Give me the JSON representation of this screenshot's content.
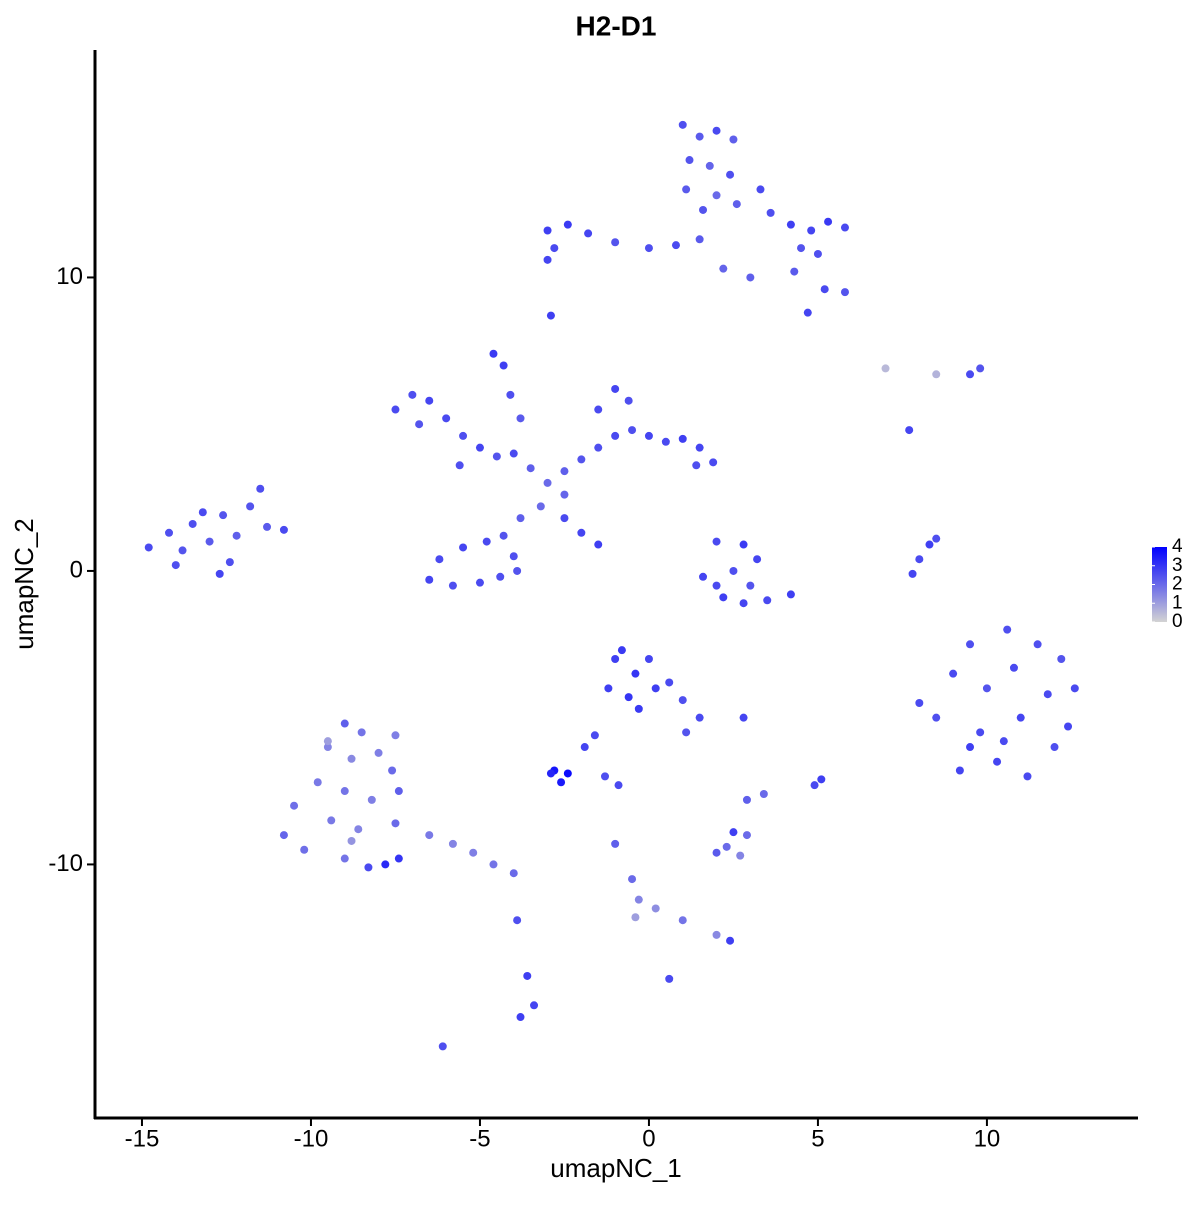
{
  "chart_data": {
    "type": "scatter",
    "title": "H2-D1",
    "x_label": "umapNC_1",
    "y_label": "umapNC_2",
    "xlim": [
      -16.39,
      14.47
    ],
    "ylim": [
      -18.64,
      17.75
    ],
    "xticks": [
      -15,
      -10,
      -5,
      0,
      5,
      10
    ],
    "yticks": [
      -10,
      0,
      10
    ],
    "colorbar": {
      "lim": [
        0,
        4
      ],
      "ticks": [
        0,
        1,
        2,
        3,
        4
      ],
      "low": "#d3d3d3",
      "high": "#0000ff"
    },
    "x": [
      1.0,
      1.5,
      2.0,
      2.5,
      1.2,
      1.8,
      2.4,
      1.1,
      2.0,
      1.6,
      2.6,
      3.3,
      3.6,
      4.2,
      4.8,
      5.3,
      5.8,
      4.5,
      5.0,
      4.3,
      5.2,
      5.8,
      4.7,
      3.0,
      2.2,
      -3.0,
      -2.4,
      -1.8,
      -2.8,
      -1.0,
      0.0,
      0.8,
      1.5,
      -3.0,
      -2.9,
      -7.5,
      -7.0,
      -6.5,
      -6.8,
      -6.0,
      -5.5,
      -5.0,
      -4.5,
      -4.0,
      -3.5,
      -3.0,
      -2.5,
      -2.0,
      -1.5,
      -1.0,
      -0.5,
      0.0,
      0.5,
      1.0,
      1.5,
      1.9,
      1.4,
      -1.5,
      -1.0,
      -0.6,
      -4.6,
      -4.3,
      -4.1,
      -3.8,
      -2.5,
      -3.2,
      -3.8,
      -4.3,
      -4.0,
      -4.8,
      -5.5,
      -6.2,
      -6.5,
      -5.8,
      -5.0,
      -4.4,
      -3.9,
      -2.5,
      -2.0,
      -1.5,
      -5.6,
      -14.8,
      -14.2,
      -13.8,
      -13.5,
      -13.0,
      -12.6,
      -12.4,
      -12.2,
      -11.8,
      -11.5,
      -11.3,
      -10.8,
      -13.2,
      -12.7,
      -14.0,
      7.0,
      8.5,
      9.5,
      9.8,
      7.7,
      2.0,
      2.8,
      3.2,
      2.5,
      3.0,
      2.0,
      1.6,
      2.2,
      2.8,
      3.5,
      4.2,
      7.8,
      8.0,
      8.3,
      8.5,
      8.0,
      8.5,
      9.0,
      9.2,
      9.5,
      9.8,
      10.0,
      10.3,
      10.6,
      10.8,
      11.0,
      11.2,
      11.5,
      11.8,
      12.0,
      12.2,
      12.6,
      12.4,
      9.5,
      10.5,
      -1.0,
      -0.8,
      -0.4,
      0.0,
      -1.2,
      -0.6,
      0.2,
      -0.3,
      0.6,
      1.0,
      1.5,
      1.1,
      -1.6,
      -1.9,
      2.8,
      -2.8,
      -2.4,
      -2.6,
      -2.9,
      -1.3,
      -0.9,
      5.1,
      4.9,
      3.4,
      2.9,
      -9.0,
      -8.5,
      -7.5,
      -9.5,
      -8.8,
      -8.0,
      -7.6,
      -9.8,
      -9.0,
      -8.2,
      -7.4,
      -10.5,
      -9.4,
      -8.6,
      -7.5,
      -10.8,
      -10.2,
      -9.0,
      -7.8,
      -7.4,
      -8.3,
      -6.5,
      -5.8,
      -5.2,
      -4.6,
      -4.0,
      -9.5,
      -8.8,
      -1.0,
      -0.5,
      -0.3,
      -0.4,
      0.2,
      1.0,
      2.0,
      2.4,
      2.3,
      2.7,
      2.5,
      2.0,
      2.9,
      -3.9,
      -3.6,
      -3.4,
      -3.8,
      -6.1,
      0.6
    ],
    "y": [
      15.2,
      14.8,
      15.0,
      14.7,
      14.0,
      13.8,
      13.5,
      13.0,
      12.8,
      12.3,
      12.5,
      13.0,
      12.2,
      11.8,
      11.6,
      11.9,
      11.7,
      11.0,
      10.8,
      10.2,
      9.6,
      9.5,
      8.8,
      10.0,
      10.3,
      11.6,
      11.8,
      11.5,
      11.0,
      11.2,
      11.0,
      11.1,
      11.3,
      10.6,
      8.7,
      5.5,
      6.0,
      5.8,
      5.0,
      5.2,
      4.6,
      4.2,
      3.9,
      4.0,
      3.5,
      3.0,
      3.4,
      3.8,
      4.2,
      4.6,
      4.8,
      4.6,
      4.4,
      4.5,
      4.2,
      3.7,
      3.6,
      5.5,
      6.2,
      5.8,
      7.4,
      7.0,
      6.0,
      5.2,
      2.6,
      2.2,
      1.8,
      1.2,
      0.5,
      1.0,
      0.8,
      0.4,
      -0.3,
      -0.5,
      -0.4,
      -0.2,
      0.0,
      1.8,
      1.3,
      0.9,
      3.6,
      0.8,
      1.3,
      0.7,
      1.6,
      1.0,
      1.9,
      0.3,
      1.2,
      2.2,
      2.8,
      1.5,
      1.4,
      2.0,
      -0.1,
      0.2,
      6.9,
      6.7,
      6.7,
      6.9,
      4.8,
      1.0,
      0.9,
      0.4,
      0.0,
      -0.5,
      -0.5,
      -0.2,
      -0.9,
      -1.1,
      -1.0,
      -0.8,
      -0.1,
      0.4,
      0.9,
      1.1,
      -4.5,
      -5.0,
      -3.5,
      -6.8,
      -2.5,
      -5.5,
      -4.0,
      -6.5,
      -2.0,
      -3.3,
      -5.0,
      -7.0,
      -2.5,
      -4.2,
      -6.0,
      -3.0,
      -4.0,
      -5.3,
      -6.0,
      -5.8,
      -3.0,
      -2.7,
      -3.5,
      -3.0,
      -4.0,
      -4.3,
      -4.0,
      -4.7,
      -3.8,
      -4.4,
      -5.0,
      -5.5,
      -5.6,
      -6.0,
      -5.0,
      -6.8,
      -6.9,
      -7.2,
      -6.9,
      -7.0,
      -7.3,
      -7.1,
      -7.3,
      -7.6,
      -7.8,
      -5.2,
      -5.5,
      -5.6,
      -6.0,
      -6.4,
      -6.2,
      -6.8,
      -7.2,
      -7.5,
      -7.8,
      -7.5,
      -8.0,
      -8.5,
      -8.8,
      -8.6,
      -9.0,
      -9.5,
      -9.8,
      -10.0,
      -9.8,
      -10.1,
      -9.0,
      -9.3,
      -9.6,
      -10.0,
      -10.3,
      -5.8,
      -9.2,
      -9.3,
      -10.5,
      -11.2,
      -11.8,
      -11.5,
      -11.9,
      -12.4,
      -12.6,
      -9.4,
      -9.7,
      -8.9,
      -9.6,
      -9.0,
      -11.9,
      -13.8,
      -14.8,
      -15.2,
      -16.2,
      -13.9
    ],
    "values": [
      2.5,
      2.3,
      2.6,
      2.2,
      2.4,
      2.1,
      2.5,
      2.3,
      2.0,
      2.4,
      2.2,
      2.6,
      2.5,
      2.8,
      2.7,
      2.9,
      2.6,
      2.4,
      2.5,
      2.3,
      2.6,
      2.4,
      2.7,
      2.2,
      2.1,
      2.8,
      2.9,
      2.7,
      2.6,
      2.4,
      2.5,
      2.6,
      2.3,
      2.7,
      2.8,
      2.6,
      2.5,
      2.7,
      2.4,
      2.6,
      2.5,
      2.7,
      2.4,
      2.6,
      2.2,
      2.0,
      2.2,
      2.4,
      2.5,
      2.6,
      2.5,
      2.7,
      2.6,
      2.8,
      2.7,
      2.6,
      2.5,
      2.6,
      2.7,
      2.5,
      2.9,
      2.8,
      2.5,
      2.3,
      2.1,
      2.0,
      2.2,
      2.4,
      2.5,
      2.6,
      2.7,
      2.6,
      2.7,
      2.5,
      2.6,
      2.5,
      2.4,
      2.6,
      2.7,
      2.8,
      2.5,
      2.6,
      2.5,
      2.4,
      2.5,
      2.3,
      2.4,
      2.5,
      2.2,
      2.4,
      2.5,
      2.3,
      2.6,
      2.6,
      2.7,
      2.5,
      0.5,
      0.6,
      2.6,
      2.4,
      2.7,
      2.6,
      2.9,
      2.7,
      2.5,
      2.4,
      2.6,
      2.7,
      2.8,
      2.7,
      2.6,
      2.8,
      2.7,
      2.6,
      2.8,
      2.5,
      2.6,
      2.5,
      2.6,
      2.7,
      2.5,
      2.6,
      2.4,
      2.7,
      2.5,
      2.6,
      2.7,
      2.6,
      2.5,
      2.6,
      2.5,
      2.4,
      2.6,
      2.7,
      2.8,
      2.6,
      2.8,
      2.9,
      3.0,
      2.7,
      2.8,
      3.0,
      2.8,
      2.9,
      2.6,
      2.5,
      2.6,
      2.4,
      2.6,
      2.7,
      2.7,
      3.6,
      3.8,
      3.5,
      3.3,
      2.5,
      2.6,
      2.8,
      2.6,
      2.0,
      2.2,
      2.2,
      1.8,
      1.6,
      1.5,
      1.4,
      1.6,
      2.0,
      1.7,
      1.8,
      1.6,
      2.2,
      1.9,
      1.7,
      1.5,
      2.0,
      2.1,
      1.9,
      1.8,
      3.2,
      3.0,
      2.6,
      1.7,
      1.5,
      1.6,
      1.8,
      2.0,
      1.0,
      1.2,
      2.2,
      2.0,
      1.5,
      1.0,
      1.3,
      1.8,
      1.4,
      2.8,
      2.0,
      1.5,
      2.8,
      2.3,
      2.0,
      2.5,
      2.8,
      2.7,
      2.8,
      2.5,
      2.6
    ]
  }
}
